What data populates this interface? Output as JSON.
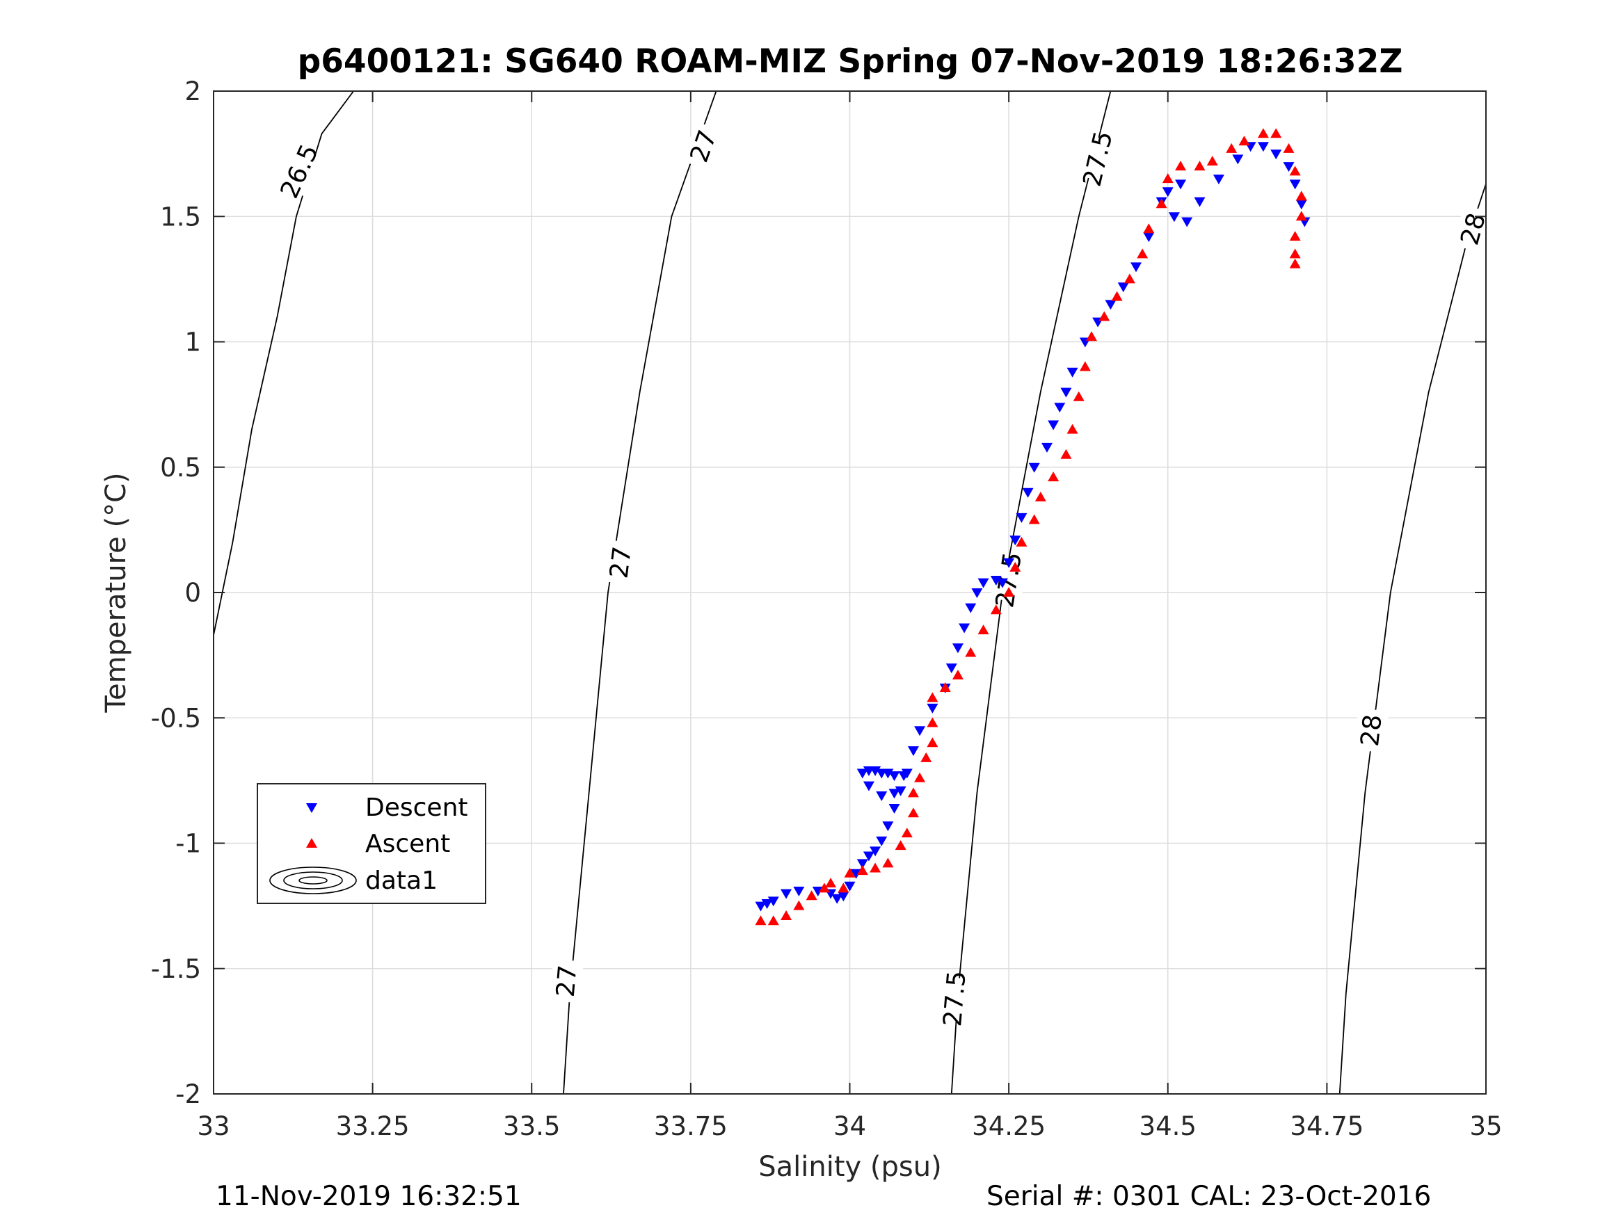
{
  "chart_data": {
    "type": "scatter",
    "title": "p6400121: SG640 ROAM-MIZ Spring 07-Nov-2019 18:26:32Z",
    "xlabel": "Salinity (psu)",
    "ylabel": "Temperature (°C)",
    "xlim": [
      33,
      35
    ],
    "ylim": [
      -2,
      2
    ],
    "xticks": [
      33,
      33.25,
      33.5,
      33.75,
      34,
      34.25,
      34.5,
      34.75,
      35
    ],
    "xtick_labels": [
      "33",
      "33.25",
      "33.5",
      "33.75",
      "34",
      "34.25",
      "34.5",
      "34.75",
      "35"
    ],
    "yticks": [
      -2,
      -1.5,
      -1,
      -0.5,
      0,
      0.5,
      1,
      1.5,
      2
    ],
    "ytick_labels": [
      "-2",
      "-1.5",
      "-1",
      "-0.5",
      "0",
      "0.5",
      "1",
      "1.5",
      "2"
    ],
    "grid": true,
    "legend_position": "lower-left",
    "contours": [
      {
        "level": "26.5",
        "points": [
          [
            33.0,
            -0.17
          ],
          [
            33.03,
            0.2
          ],
          [
            33.06,
            0.65
          ],
          [
            33.1,
            1.1
          ],
          [
            33.13,
            1.5
          ],
          [
            33.17,
            1.83
          ],
          [
            33.22,
            2.0
          ]
        ],
        "labels": [
          {
            "s": 33.135,
            "t": 1.68
          }
        ]
      },
      {
        "level": "27",
        "points": [
          [
            33.55,
            -2.0
          ],
          [
            33.56,
            -1.6
          ],
          [
            33.59,
            -0.8
          ],
          [
            33.62,
            0.0
          ],
          [
            33.67,
            0.8
          ],
          [
            33.72,
            1.5
          ],
          [
            33.79,
            2.0
          ]
        ],
        "labels": [
          {
            "s": 33.64,
            "t": 0.12
          },
          {
            "s": 33.555,
            "t": -1.55
          },
          {
            "s": 33.77,
            "t": 1.78
          }
        ]
      },
      {
        "level": "27.5",
        "points": [
          [
            34.16,
            -2.0
          ],
          [
            34.17,
            -1.6
          ],
          [
            34.2,
            -0.8
          ],
          [
            34.24,
            0.0
          ],
          [
            34.3,
            0.8
          ],
          [
            34.36,
            1.5
          ],
          [
            34.41,
            2.0
          ]
        ],
        "labels": [
          {
            "s": 34.25,
            "t": 0.05
          },
          {
            "s": 34.165,
            "t": -1.62
          },
          {
            "s": 34.39,
            "t": 1.73
          }
        ]
      },
      {
        "level": "28",
        "points": [
          [
            34.77,
            -2.0
          ],
          [
            34.78,
            -1.6
          ],
          [
            34.81,
            -0.8
          ],
          [
            34.85,
            0.0
          ],
          [
            34.91,
            0.8
          ],
          [
            34.97,
            1.4
          ],
          [
            35.0,
            1.63
          ]
        ],
        "labels": [
          {
            "s": 34.82,
            "t": -0.55
          },
          {
            "s": 34.98,
            "t": 1.45
          }
        ]
      }
    ],
    "series": [
      {
        "name": "Descent",
        "color": "#0000ff",
        "marker": "triangle-down",
        "points": [
          [
            33.86,
            -1.25
          ],
          [
            33.87,
            -1.24
          ],
          [
            33.88,
            -1.23
          ],
          [
            33.9,
            -1.2
          ],
          [
            33.92,
            -1.19
          ],
          [
            33.95,
            -1.19
          ],
          [
            33.97,
            -1.2
          ],
          [
            33.98,
            -1.22
          ],
          [
            33.99,
            -1.21
          ],
          [
            34.0,
            -1.17
          ],
          [
            34.01,
            -1.12
          ],
          [
            34.02,
            -1.08
          ],
          [
            34.03,
            -1.05
          ],
          [
            34.04,
            -1.03
          ],
          [
            34.05,
            -0.99
          ],
          [
            34.06,
            -0.93
          ],
          [
            34.07,
            -0.86
          ],
          [
            34.08,
            -0.79
          ],
          [
            34.085,
            -0.73
          ],
          [
            34.07,
            -0.73
          ],
          [
            34.06,
            -0.72
          ],
          [
            34.05,
            -0.72
          ],
          [
            34.04,
            -0.71
          ],
          [
            34.03,
            -0.71
          ],
          [
            34.02,
            -0.72
          ],
          [
            34.03,
            -0.77
          ],
          [
            34.05,
            -0.81
          ],
          [
            34.07,
            -0.8
          ],
          [
            34.09,
            -0.72
          ],
          [
            34.1,
            -0.63
          ],
          [
            34.11,
            -0.55
          ],
          [
            34.13,
            -0.46
          ],
          [
            34.15,
            -0.38
          ],
          [
            34.16,
            -0.3
          ],
          [
            34.17,
            -0.22
          ],
          [
            34.18,
            -0.14
          ],
          [
            34.19,
            -0.06
          ],
          [
            34.2,
            0.0
          ],
          [
            34.21,
            0.04
          ],
          [
            34.23,
            0.05
          ],
          [
            34.24,
            0.04
          ],
          [
            34.25,
            0.12
          ],
          [
            34.26,
            0.21
          ],
          [
            34.27,
            0.3
          ],
          [
            34.28,
            0.4
          ],
          [
            34.29,
            0.5
          ],
          [
            34.31,
            0.58
          ],
          [
            34.32,
            0.67
          ],
          [
            34.33,
            0.74
          ],
          [
            34.34,
            0.8
          ],
          [
            34.35,
            0.88
          ],
          [
            34.37,
            1.0
          ],
          [
            34.39,
            1.08
          ],
          [
            34.41,
            1.15
          ],
          [
            34.43,
            1.22
          ],
          [
            34.45,
            1.3
          ],
          [
            34.47,
            1.42
          ],
          [
            34.49,
            1.56
          ],
          [
            34.5,
            1.6
          ],
          [
            34.52,
            1.63
          ],
          [
            34.51,
            1.5
          ],
          [
            34.53,
            1.48
          ],
          [
            34.55,
            1.56
          ],
          [
            34.58,
            1.65
          ],
          [
            34.61,
            1.73
          ],
          [
            34.63,
            1.78
          ],
          [
            34.65,
            1.78
          ],
          [
            34.67,
            1.75
          ],
          [
            34.69,
            1.7
          ],
          [
            34.7,
            1.63
          ],
          [
            34.71,
            1.55
          ],
          [
            34.715,
            1.48
          ]
        ]
      },
      {
        "name": "Ascent",
        "color": "#ff0000",
        "marker": "triangle-up",
        "points": [
          [
            33.86,
            -1.31
          ],
          [
            33.88,
            -1.31
          ],
          [
            33.9,
            -1.29
          ],
          [
            33.92,
            -1.25
          ],
          [
            33.94,
            -1.21
          ],
          [
            33.96,
            -1.18
          ],
          [
            33.97,
            -1.16
          ],
          [
            33.99,
            -1.18
          ],
          [
            34.0,
            -1.12
          ],
          [
            34.02,
            -1.11
          ],
          [
            34.04,
            -1.1
          ],
          [
            34.06,
            -1.08
          ],
          [
            34.08,
            -1.01
          ],
          [
            34.09,
            -0.96
          ],
          [
            34.1,
            -0.88
          ],
          [
            34.1,
            -0.8
          ],
          [
            34.11,
            -0.74
          ],
          [
            34.12,
            -0.66
          ],
          [
            34.13,
            -0.6
          ],
          [
            34.13,
            -0.52
          ],
          [
            34.13,
            -0.42
          ],
          [
            34.15,
            -0.38
          ],
          [
            34.17,
            -0.33
          ],
          [
            34.19,
            -0.24
          ],
          [
            34.21,
            -0.15
          ],
          [
            34.23,
            -0.07
          ],
          [
            34.25,
            0.0
          ],
          [
            34.26,
            0.1
          ],
          [
            34.27,
            0.2
          ],
          [
            34.29,
            0.29
          ],
          [
            34.3,
            0.38
          ],
          [
            34.32,
            0.46
          ],
          [
            34.34,
            0.55
          ],
          [
            34.35,
            0.65
          ],
          [
            34.36,
            0.78
          ],
          [
            34.37,
            0.9
          ],
          [
            34.38,
            1.02
          ],
          [
            34.4,
            1.1
          ],
          [
            34.42,
            1.18
          ],
          [
            34.44,
            1.25
          ],
          [
            34.46,
            1.35
          ],
          [
            34.47,
            1.45
          ],
          [
            34.49,
            1.55
          ],
          [
            34.5,
            1.65
          ],
          [
            34.52,
            1.7
          ],
          [
            34.55,
            1.7
          ],
          [
            34.57,
            1.72
          ],
          [
            34.6,
            1.77
          ],
          [
            34.62,
            1.8
          ],
          [
            34.65,
            1.83
          ],
          [
            34.67,
            1.83
          ],
          [
            34.69,
            1.77
          ],
          [
            34.7,
            1.68
          ],
          [
            34.71,
            1.58
          ],
          [
            34.71,
            1.5
          ],
          [
            34.7,
            1.42
          ],
          [
            34.7,
            1.35
          ],
          [
            34.7,
            1.31
          ]
        ]
      }
    ],
    "legend": [
      "Descent",
      "Ascent",
      "data1"
    ]
  },
  "footer": {
    "timestamp": "11-Nov-2019 16:32:51",
    "serial": "Serial #: 0301  CAL: 23-Oct-2016"
  }
}
